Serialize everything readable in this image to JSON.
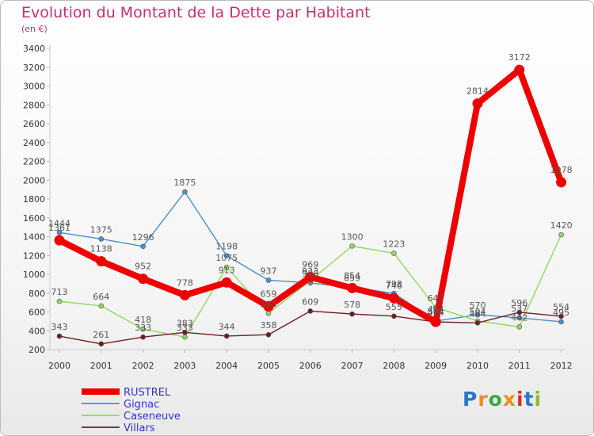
{
  "header": {
    "title": "Evolution du Montant de la Dette par Habitant",
    "subtitle": "(en €)"
  },
  "logo": {
    "text": "Proxiti",
    "colors": [
      "#2a76c8",
      "#f08a1c",
      "#38a848",
      "#f08a1c",
      "#d63030",
      "#2a76c8",
      "#8cbf2a"
    ]
  },
  "chart_data": {
    "type": "line",
    "title": "Evolution du Montant de la Dette par Habitant",
    "subtitle": "(en €)",
    "x": [
      "2000",
      "2001",
      "2002",
      "2003",
      "2004",
      "2005",
      "2006",
      "2007",
      "2008",
      "2009",
      "2010",
      "2011",
      "2012"
    ],
    "ylim": [
      200,
      3400
    ],
    "yticks": [
      200,
      400,
      600,
      800,
      1000,
      1200,
      1400,
      1600,
      1800,
      2000,
      2200,
      2400,
      2600,
      2800,
      3000,
      3200,
      3400
    ],
    "grid": false,
    "legend_position": "bottom-left",
    "series": [
      {
        "name": "RUSTREL",
        "color": "#ee0000",
        "emphasis": true,
        "values": [
          1361,
          1138,
          952,
          778,
          913,
          659,
          969,
          854,
          746,
          494,
          2814,
          3172,
          1978
        ]
      },
      {
        "name": "Gignac",
        "color": "#4a8fd0",
        "emphasis": false,
        "values": [
          1444,
          1375,
          1296,
          1875,
          1198,
          937,
          908,
          859,
          798,
          504,
          570,
          537,
          495
        ]
      },
      {
        "name": "Caseneuve",
        "color": "#90d860",
        "emphasis": false,
        "values": [
          713,
          664,
          418,
          333,
          1075,
          585,
          933,
          1300,
          1223,
          648,
          504,
          442,
          1420
        ]
      },
      {
        "name": "Villars",
        "color": "#6e1e1e",
        "emphasis": false,
        "values": [
          343,
          261,
          333,
          383,
          344,
          358,
          609,
          578,
          555,
          494,
          484,
          596,
          554
        ]
      }
    ]
  }
}
